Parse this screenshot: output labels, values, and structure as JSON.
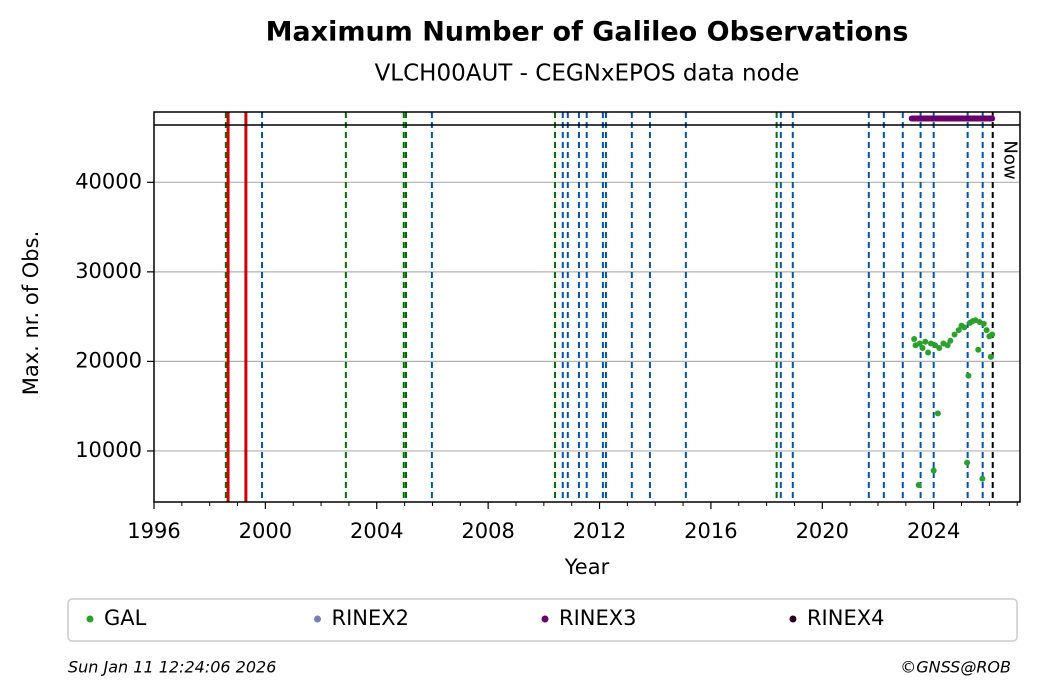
{
  "chart_data": {
    "type": "scatter",
    "title": "Maximum Number of Galileo Observations",
    "subtitle": "VLCH00AUT - CEGNxEPOS data node",
    "xlabel": "Year",
    "ylabel": "Max. nr. of Obs.",
    "xlim": [
      1996,
      2027.1
    ],
    "ylim": [
      4300,
      46400
    ],
    "xticks": [
      1996,
      2000,
      2004,
      2008,
      2012,
      2016,
      2020,
      2024
    ],
    "xminorticks": [
      1997,
      1998,
      1999,
      2001,
      2002,
      2003,
      2005,
      2006,
      2007,
      2009,
      2010,
      2011,
      2013,
      2014,
      2015,
      2017,
      2018,
      2019,
      2021,
      2022,
      2023,
      2025,
      2026,
      2027
    ],
    "yticks": [
      10000,
      20000,
      30000,
      40000
    ],
    "grid": true,
    "legend": "bottom",
    "series": [
      {
        "name": "GAL",
        "color": "#2ca02c",
        "x": [
          2023.3,
          2023.35,
          2023.46,
          2023.5,
          2023.6,
          2023.7,
          2023.8,
          2023.9,
          2024.0,
          2024.05,
          2024.15,
          2024.2,
          2024.35,
          2024.5,
          2024.6,
          2024.75,
          2024.9,
          2025.0,
          2025.1,
          2025.2,
          2025.25,
          2025.3,
          2025.4,
          2025.5,
          2025.6,
          2025.65,
          2025.75,
          2025.8,
          2025.9,
          2026.0,
          2026.05,
          2026.1
        ],
        "values": [
          22500,
          21800,
          6200,
          22000,
          21500,
          22200,
          21000,
          22000,
          7800,
          21800,
          14200,
          21500,
          22000,
          21800,
          22300,
          23000,
          23500,
          24000,
          23800,
          8700,
          18400,
          24300,
          24500,
          24600,
          21300,
          24400,
          6900,
          24200,
          23500,
          22800,
          20500,
          23000
        ]
      },
      {
        "name": "RINEX2",
        "color": "#7b7bb5"
      },
      {
        "name": "RINEX3",
        "color": "#6a006a",
        "span": [
          2023.21,
          2026.1
        ]
      },
      {
        "name": "RINEX4",
        "color": "#2a0020"
      }
    ],
    "vlines": [
      {
        "x": 1998.58,
        "color": "#007000",
        "style": "dashed"
      },
      {
        "x": 1998.66,
        "color": "#cc0000",
        "style": "solid"
      },
      {
        "x": 1999.3,
        "color": "#cc0000",
        "style": "solid"
      },
      {
        "x": 2002.89,
        "color": "#007000",
        "style": "dashed"
      },
      {
        "x": 2004.97,
        "color": "#007000",
        "style": "dashed"
      },
      {
        "x": 2005.05,
        "color": "#007000",
        "style": "dashed"
      },
      {
        "x": 2010.4,
        "color": "#007000",
        "style": "dashed"
      },
      {
        "x": 2018.36,
        "color": "#007000",
        "style": "dashed"
      },
      {
        "x": 1999.88,
        "color": "#0055aa",
        "style": "dashed"
      },
      {
        "x": 2005.98,
        "color": "#0055aa",
        "style": "dashed"
      },
      {
        "x": 2010.68,
        "color": "#0055aa",
        "style": "dashed"
      },
      {
        "x": 2010.86,
        "color": "#0055aa",
        "style": "dashed"
      },
      {
        "x": 2011.26,
        "color": "#0055aa",
        "style": "dashed"
      },
      {
        "x": 2011.54,
        "color": "#0055aa",
        "style": "dashed"
      },
      {
        "x": 2012.12,
        "color": "#0055aa",
        "style": "dashed"
      },
      {
        "x": 2012.23,
        "color": "#0055aa",
        "style": "dashed"
      },
      {
        "x": 2013.16,
        "color": "#0055aa",
        "style": "dashed"
      },
      {
        "x": 2013.81,
        "color": "#0055aa",
        "style": "dashed"
      },
      {
        "x": 2015.1,
        "color": "#0055aa",
        "style": "dashed"
      },
      {
        "x": 2018.51,
        "color": "#0055aa",
        "style": "dashed"
      },
      {
        "x": 2018.94,
        "color": "#0055aa",
        "style": "dashed"
      },
      {
        "x": 2021.67,
        "color": "#0055aa",
        "style": "dashed"
      },
      {
        "x": 2022.21,
        "color": "#0055aa",
        "style": "dashed"
      },
      {
        "x": 2022.89,
        "color": "#0055aa",
        "style": "dashed"
      },
      {
        "x": 2023.53,
        "color": "#0055aa",
        "style": "dashed"
      },
      {
        "x": 2024.0,
        "color": "#0055aa",
        "style": "dashed"
      },
      {
        "x": 2025.22,
        "color": "#0055aa",
        "style": "dashed"
      },
      {
        "x": 2025.76,
        "color": "#0055aa",
        "style": "dashed"
      },
      {
        "x": 2026.12,
        "color": "#000000",
        "style": "dashed",
        "label": "Now"
      }
    ],
    "timestamp": "Sun Jan 11 12:24:06 2026",
    "credit": "©GNSS@ROB"
  }
}
